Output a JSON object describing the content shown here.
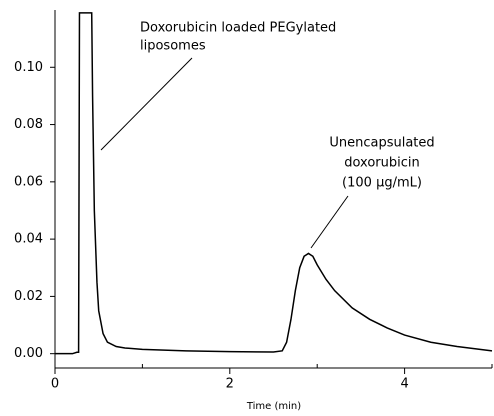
{
  "chart_data": {
    "type": "line",
    "x_label": "Time (min)",
    "x": [
      0,
      0.2,
      0.25,
      0.27,
      0.28,
      0.3,
      0.42,
      0.43,
      0.45,
      0.48,
      0.5,
      0.55,
      0.6,
      0.7,
      0.8,
      1.0,
      1.5,
      2.0,
      2.5,
      2.6,
      2.65,
      2.7,
      2.75,
      2.8,
      2.85,
      2.9,
      2.95,
      3.0,
      3.1,
      3.2,
      3.4,
      3.6,
      3.8,
      4.0,
      4.3,
      4.6,
      5.0
    ],
    "series": [
      {
        "color": "#000000",
        "values": [
          0,
          0,
          0.0005,
          0.0005,
          0.119,
          0.119,
          0.119,
          0.09,
          0.05,
          0.025,
          0.015,
          0.007,
          0.004,
          0.0025,
          0.002,
          0.0015,
          0.001,
          0.0007,
          0.0006,
          0.001,
          0.004,
          0.012,
          0.022,
          0.03,
          0.034,
          0.035,
          0.034,
          0.031,
          0.026,
          0.022,
          0.016,
          0.012,
          0.009,
          0.0065,
          0.004,
          0.0025,
          0.001
        ]
      }
    ],
    "xlim": [
      0,
      5
    ],
    "ylim": [
      -0.005,
      0.12
    ],
    "xticks": [
      0,
      2,
      4
    ],
    "xminor": [
      1,
      3,
      5
    ],
    "yticks": [
      {
        "value": 0,
        "label": "0.00"
      },
      {
        "value": 0.02,
        "label": "0.02"
      },
      {
        "value": 0.04,
        "label": "0.04"
      },
      {
        "value": 0.06,
        "label": "0.06"
      },
      {
        "value": 0.08,
        "label": "0.08"
      },
      {
        "value": 0.1,
        "label": "0.10"
      }
    ],
    "annotations": [
      {
        "lines": [
          "Doxorubicin loaded PEGylated",
          "liposomes"
        ]
      },
      {
        "lines": [
          "Unencapsulated",
          "doxorubicin",
          "(100 µg/mL)"
        ]
      }
    ]
  }
}
